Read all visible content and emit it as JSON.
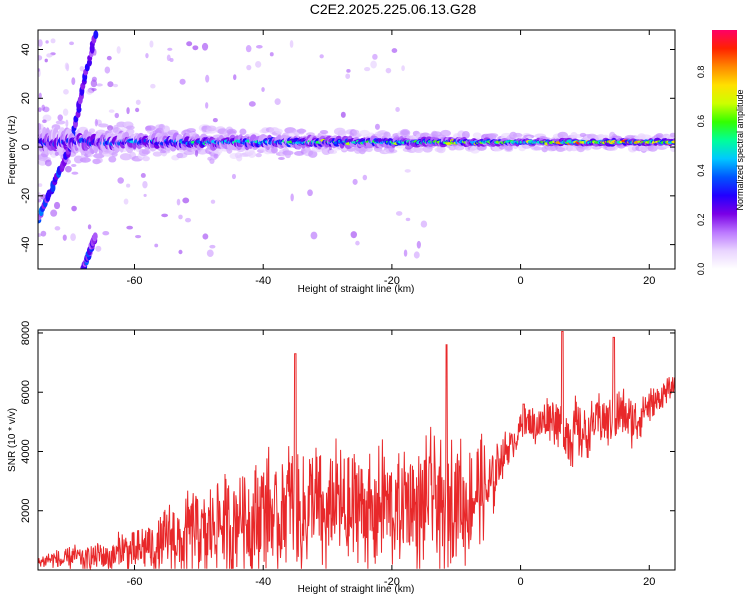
{
  "figure_title": "C2E2.2025.225.06.13.G28",
  "chart_data": [
    {
      "type": "heatmap",
      "xlabel": "Height of straight line (km)",
      "ylabel": "Frequency (Hz)",
      "xlim": [
        -75,
        24
      ],
      "ylim": [
        -50,
        48
      ],
      "xticks": [
        -60,
        -40,
        -20,
        0,
        20
      ],
      "yticks": [
        -40,
        -20,
        0,
        20,
        40
      ],
      "colorbar": {
        "label": "Normalized spectral amplitude",
        "range": [
          0,
          0.97
        ],
        "ticks": [
          0.0,
          0.2,
          0.4,
          0.6,
          0.8
        ],
        "colormap": [
          "#ffffff",
          "#e9d4ff",
          "#bb77ff",
          "#7a00e6",
          "#2200ff",
          "#0055ff",
          "#00c8ff",
          "#00ff99",
          "#33ff00",
          "#ccff00",
          "#ffe000",
          "#ff8800",
          "#ff2200",
          "#ff0066"
        ]
      },
      "ridge": {
        "center_freq_hz": 2,
        "x": [
          -75,
          -70,
          -60,
          -50,
          -40,
          -30,
          -20,
          -10,
          0,
          10,
          24
        ],
        "half_width_hz": [
          9,
          8,
          6,
          5,
          4.5,
          4,
          3.5,
          3,
          2.5,
          2.5,
          2.5
        ],
        "peak_amplitude": [
          0.35,
          0.45,
          0.45,
          0.55,
          0.6,
          0.65,
          0.65,
          0.75,
          0.7,
          0.9,
          0.85
        ]
      },
      "side_branches": [
        {
          "from": [
            -75,
            -30
          ],
          "to": [
            -70,
            0
          ]
        },
        {
          "from": [
            -70,
            0
          ],
          "to": [
            -66,
            48
          ]
        },
        {
          "from": [
            -68,
            -50
          ],
          "to": [
            -66,
            -36
          ]
        }
      ]
    },
    {
      "type": "line",
      "xlabel": "Height of straight line (km)",
      "ylabel": "SNR (10 * v/v)",
      "xlim": [
        -75,
        24
      ],
      "ylim": [
        0,
        8100
      ],
      "xticks": [
        -60,
        -40,
        -20,
        0,
        20
      ],
      "yticks": [
        2000,
        4000,
        6000,
        8000
      ],
      "color": "#e8282a",
      "trend": {
        "x": [
          -75,
          -65,
          -58,
          -50,
          -40,
          -30,
          -20,
          -12,
          -6,
          -2,
          0,
          5,
          8,
          10,
          14,
          18,
          22,
          24
        ],
        "mean": [
          300,
          450,
          700,
          1300,
          1900,
          2000,
          2100,
          2300,
          2500,
          4100,
          4800,
          5100,
          4500,
          4700,
          5200,
          5100,
          5900,
          6200
        ],
        "amplitude": [
          250,
          600,
          900,
          1700,
          2200,
          2200,
          2100,
          2400,
          1900,
          600,
          500,
          900,
          1300,
          900,
          1000,
          900,
          500,
          300
        ]
      },
      "spikes": [
        {
          "x": -35,
          "y": 7300
        },
        {
          "x": -11.5,
          "y": 7600
        },
        {
          "x": 6.5,
          "y": 8050
        },
        {
          "x": 14.5,
          "y": 7850
        },
        {
          "x": 0.5,
          "y": 5600
        }
      ]
    }
  ]
}
